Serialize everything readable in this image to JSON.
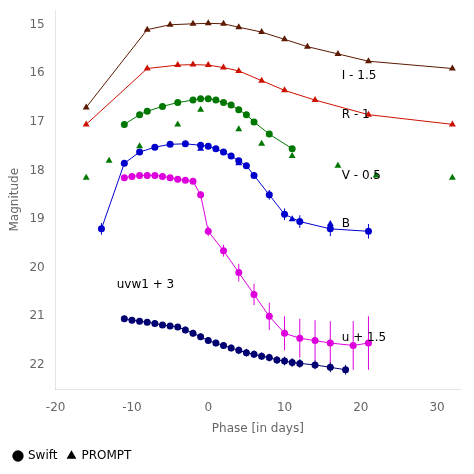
{
  "chart_data": {
    "type": "scatter",
    "xlabel": "Phase [in days]",
    "ylabel": "Magnitude",
    "xlim": [
      -20,
      33
    ],
    "ylim": [
      22.5,
      14.7
    ],
    "xticks": [
      -20,
      -10,
      0,
      10,
      20,
      30
    ],
    "yticks": [
      15,
      16,
      17,
      18,
      19,
      20,
      21,
      22
    ],
    "grid": false,
    "legend": "lower left",
    "legend_entries": [
      {
        "name": "Swift",
        "marker": "circle",
        "color": "#000000"
      },
      {
        "name": "PROMPT",
        "marker": "triangle",
        "color": "#000000"
      }
    ],
    "annotations": [
      {
        "text": "I - 1.5",
        "x": 17.5,
        "y": 16.05
      },
      {
        "text": "R - 1",
        "x": 17.5,
        "y": 16.85
      },
      {
        "text": "V - 0.5",
        "x": 17.5,
        "y": 18.1
      },
      {
        "text": "B",
        "x": 17.5,
        "y": 19.1
      },
      {
        "text": "u + 1.5",
        "x": 17.5,
        "y": 21.45
      },
      {
        "text": "uvw1 + 3",
        "x": -12,
        "y": 20.35
      }
    ],
    "series": [
      {
        "color": "#5C1A00",
        "marker": "triangle",
        "line_style": "solid",
        "x": [
          -16,
          -8,
          -5,
          -2,
          0,
          2,
          4,
          7,
          10,
          13,
          17,
          21,
          32
        ],
        "values": [
          16.7,
          15.1,
          15.0,
          14.98,
          14.97,
          14.98,
          15.05,
          15.15,
          15.3,
          15.45,
          15.6,
          15.75,
          15.9
        ]
      },
      {
        "color": "#CC1100",
        "marker": "triangle",
        "line_style": "solid",
        "x": [
          -16,
          -8,
          -4,
          -2,
          0,
          2,
          4,
          7,
          10,
          14,
          21,
          32
        ],
        "values": [
          17.05,
          15.9,
          15.83,
          15.82,
          15.83,
          15.88,
          15.95,
          16.15,
          16.35,
          16.55,
          16.85,
          17.05
        ]
      },
      {
        "color": "#007700",
        "marker": "circle",
        "line_style": "solid",
        "x": [
          -11,
          -9,
          -8,
          -6,
          -4,
          -2,
          -1,
          0,
          1,
          2,
          3,
          4,
          5,
          6,
          8,
          11
        ],
        "values": [
          17.05,
          16.85,
          16.78,
          16.68,
          16.6,
          16.55,
          16.52,
          16.52,
          16.55,
          16.6,
          16.65,
          16.75,
          16.85,
          17.0,
          17.25,
          17.55
        ],
        "yerr": [
          0.04,
          0.04,
          0.04,
          0.04,
          0.04,
          0.04,
          0.04,
          0.04,
          0.04,
          0.04,
          0.04,
          0.04,
          0.04,
          0.04,
          0.05,
          0.05
        ]
      },
      {
        "color": "#007700",
        "marker": "triangle",
        "line_style": "none",
        "x": [
          -16,
          -13,
          -9,
          -4,
          -1,
          4,
          7,
          11,
          17,
          22,
          32
        ],
        "values": [
          18.15,
          17.8,
          17.5,
          17.05,
          16.75,
          17.15,
          17.45,
          17.7,
          17.9,
          18.1,
          18.15
        ]
      },
      {
        "color": "#0000CC",
        "marker": "circle",
        "line_style": "solid",
        "x": [
          -14,
          -11,
          -9,
          -7,
          -5,
          -3,
          -1,
          0,
          1,
          2,
          3,
          4,
          5,
          6,
          8,
          10,
          12,
          16,
          21
        ],
        "values": [
          19.2,
          17.85,
          17.62,
          17.52,
          17.46,
          17.45,
          17.48,
          17.5,
          17.55,
          17.62,
          17.7,
          17.8,
          17.9,
          18.1,
          18.5,
          18.9,
          19.05,
          19.2,
          19.25
        ],
        "yerr": [
          0.12,
          0.06,
          0.05,
          0.05,
          0.05,
          0.05,
          0.05,
          0.05,
          0.05,
          0.05,
          0.05,
          0.05,
          0.06,
          0.07,
          0.1,
          0.12,
          0.13,
          0.15,
          0.15
        ]
      },
      {
        "color": "#0000CC",
        "marker": "triangle",
        "line_style": "none",
        "x": [
          -1,
          4,
          11,
          16
        ],
        "values": [
          17.55,
          17.85,
          19.0,
          19.1
        ]
      },
      {
        "color": "#DD00DD",
        "marker": "circle",
        "line_style": "solid",
        "x": [
          -11,
          -10,
          -9,
          -8,
          -7,
          -6,
          -5,
          -4,
          -3,
          -2,
          -1,
          0,
          2,
          4,
          6,
          8,
          10,
          12,
          14,
          16,
          19,
          21
        ],
        "values": [
          18.15,
          18.12,
          18.1,
          18.1,
          18.1,
          18.12,
          18.15,
          18.18,
          18.2,
          18.22,
          18.5,
          19.25,
          19.65,
          20.1,
          20.55,
          21.0,
          21.35,
          21.45,
          21.5,
          21.55,
          21.6,
          21.55
        ],
        "yerr": [
          0.05,
          0.05,
          0.05,
          0.05,
          0.05,
          0.05,
          0.05,
          0.05,
          0.05,
          0.05,
          0.07,
          0.1,
          0.12,
          0.18,
          0.22,
          0.28,
          0.35,
          0.4,
          0.42,
          0.45,
          0.5,
          0.55
        ]
      },
      {
        "color": "#000070",
        "marker": "circle",
        "line_style": "solid",
        "x": [
          -11,
          -10,
          -9,
          -8,
          -7,
          -6,
          -5,
          -4,
          -3,
          -2,
          -1,
          0,
          1,
          2,
          3,
          4,
          5,
          6,
          7,
          8,
          9,
          10,
          11,
          12,
          14,
          16,
          18
        ],
        "values": [
          21.05,
          21.08,
          21.1,
          21.12,
          21.15,
          21.18,
          21.2,
          21.22,
          21.28,
          21.35,
          21.42,
          21.5,
          21.55,
          21.6,
          21.65,
          21.7,
          21.75,
          21.78,
          21.82,
          21.85,
          21.9,
          21.92,
          21.95,
          21.97,
          22.0,
          22.05,
          22.1
        ],
        "yerr": [
          0.06,
          0.06,
          0.06,
          0.06,
          0.06,
          0.06,
          0.06,
          0.06,
          0.07,
          0.07,
          0.07,
          0.07,
          0.07,
          0.07,
          0.07,
          0.08,
          0.08,
          0.08,
          0.08,
          0.08,
          0.08,
          0.09,
          0.09,
          0.09,
          0.09,
          0.1,
          0.1
        ]
      }
    ]
  }
}
